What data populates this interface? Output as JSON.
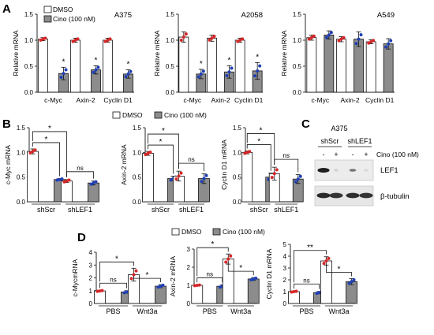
{
  "labels": {
    "A": "A",
    "B": "B",
    "C": "C",
    "D": "D"
  },
  "legend": {
    "dmso": "DMSO",
    "cino": "Cino (100 nM)"
  },
  "colors": {
    "dmso_fill": "#ffffff",
    "cino_fill": "#8c8c8c",
    "bar_stroke": "#111111",
    "dot_red": "#d62728",
    "dot_blue": "#1f3fb5"
  },
  "chart_data": [
    {
      "id": "A-A375",
      "type": "bar",
      "cell_line": "A375",
      "ylabel": "Relative mRNA",
      "ylim": [
        0,
        1.5
      ],
      "yticks": [
        "0.0",
        "0.5",
        "1.0",
        "1.5"
      ],
      "categories": [
        "c-Myc",
        "Axin-2",
        "Cyclin D1"
      ],
      "series": [
        {
          "name": "DMSO",
          "values": [
            1.02,
            1.0,
            1.0
          ],
          "err": [
            0.03,
            0.04,
            0.04
          ]
        },
        {
          "name": "Cino (100 nM)",
          "values": [
            0.36,
            0.43,
            0.35
          ],
          "err": [
            0.12,
            0.08,
            0.08
          ]
        }
      ],
      "annotations": [
        "*",
        "*",
        "*"
      ]
    },
    {
      "id": "A-A2058",
      "type": "bar",
      "cell_line": "A2058",
      "ylabel": "Relative mRNA",
      "ylim": [
        0,
        1.5
      ],
      "yticks": [
        "0.0",
        "0.5",
        "1.0",
        "1.5"
      ],
      "categories": [
        "c-Myc",
        "Axin-2",
        "Cyclin D1"
      ],
      "series": [
        {
          "name": "DMSO",
          "values": [
            1.06,
            1.04,
            1.0
          ],
          "err": [
            0.1,
            0.06,
            0.04
          ]
        },
        {
          "name": "Cino (100 nM)",
          "values": [
            0.35,
            0.39,
            0.41
          ],
          "err": [
            0.09,
            0.12,
            0.16
          ]
        }
      ],
      "annotations": [
        "*",
        "*",
        "*"
      ]
    },
    {
      "id": "A-A549",
      "type": "bar",
      "cell_line": "A549",
      "ylabel": "Relative mRNA",
      "ylim": [
        0,
        1.5
      ],
      "yticks": [
        "0.0",
        "0.5",
        "1.0",
        "1.5"
      ],
      "categories": [
        "c-Myc",
        "Axin-2",
        "Cyclin D1"
      ],
      "series": [
        {
          "name": "DMSO",
          "values": [
            1.05,
            1.02,
            0.97
          ],
          "err": [
            0.05,
            0.05,
            0.04
          ]
        },
        {
          "name": "Cino (100 nM)",
          "values": [
            1.1,
            1.02,
            0.93
          ],
          "err": [
            0.08,
            0.14,
            0.1
          ]
        }
      ],
      "annotations": []
    },
    {
      "id": "B-cMyc",
      "type": "bar",
      "ylabel": "c-Myc mRNA",
      "ylim": [
        0,
        1.5
      ],
      "yticks": [
        "0.0",
        "0.5",
        "1.0",
        "1.5"
      ],
      "categories": [
        "shScr",
        "shLEF1"
      ],
      "series": [
        {
          "name": "DMSO",
          "values": [
            1.02,
            0.42
          ],
          "err": [
            0.05,
            0.03
          ]
        },
        {
          "name": "Cino (100 nM)",
          "values": [
            0.45,
            0.38
          ],
          "err": [
            0.02,
            0.04
          ]
        }
      ],
      "annotations": [
        "*",
        "*",
        "ns"
      ]
    },
    {
      "id": "B-Axin2",
      "type": "bar",
      "ylabel": "Axin-2 mRNA",
      "ylim": [
        0,
        1.5
      ],
      "yticks": [
        "0.0",
        "0.5",
        "1.0",
        "1.5"
      ],
      "categories": [
        "shScr",
        "shLEF1"
      ],
      "series": [
        {
          "name": "DMSO",
          "values": [
            0.98,
            0.52
          ],
          "err": [
            0.04,
            0.1
          ]
        },
        {
          "name": "Cino (100 nM)",
          "values": [
            0.47,
            0.47
          ],
          "err": [
            0.05,
            0.1
          ]
        }
      ],
      "annotations": [
        "*",
        "*",
        "ns"
      ]
    },
    {
      "id": "B-CyclinD1",
      "type": "bar",
      "ylabel": "Cyclin D1 mRNA",
      "ylim": [
        0,
        1.5
      ],
      "yticks": [
        "0.0",
        "0.5",
        "1.0",
        "1.5"
      ],
      "categories": [
        "shScr",
        "shLEF1"
      ],
      "series": [
        {
          "name": "DMSO",
          "values": [
            1.0,
            0.57
          ],
          "err": [
            0.03,
            0.13
          ]
        },
        {
          "name": "Cino (100 nM)",
          "values": [
            0.5,
            0.46
          ],
          "err": [
            0.08,
            0.09
          ]
        }
      ],
      "annotations": [
        "*",
        "*",
        "ns"
      ]
    },
    {
      "id": "D-cMyc",
      "type": "bar",
      "ylabel": "c-MycmRNA",
      "ylim": [
        0,
        4
      ],
      "yticks": [
        "0",
        "1",
        "2",
        "3",
        "4"
      ],
      "categories": [
        "PBS",
        "Wnt3a"
      ],
      "series": [
        {
          "name": "DMSO",
          "values": [
            0.98,
            2.25
          ],
          "err": [
            0.05,
            0.5
          ]
        },
        {
          "name": "Cino (100 nM)",
          "values": [
            0.9,
            1.35
          ],
          "err": [
            0.1,
            0.12
          ]
        }
      ],
      "annotations": [
        "ns",
        "*",
        "*"
      ]
    },
    {
      "id": "D-Axin2",
      "type": "bar",
      "ylabel": "Axin-2 mRNA",
      "ylim": [
        0,
        3
      ],
      "yticks": [
        "0",
        "1",
        "2",
        "3"
      ],
      "categories": [
        "PBS",
        "Wnt3a"
      ],
      "series": [
        {
          "name": "DMSO",
          "values": [
            1.0,
            2.45
          ],
          "err": [
            0.03,
            0.28
          ]
        },
        {
          "name": "Cino (100 nM)",
          "values": [
            0.95,
            1.35
          ],
          "err": [
            0.08,
            0.08
          ]
        }
      ],
      "annotations": [
        "ns",
        "*",
        "*"
      ]
    },
    {
      "id": "D-CyclinD1",
      "type": "bar",
      "ylabel": "Cyclin D1 mRNA",
      "ylim": [
        0,
        5
      ],
      "yticks": [
        "0",
        "1",
        "2",
        "3",
        "4",
        "5"
      ],
      "categories": [
        "PBS",
        "Wnt3a"
      ],
      "series": [
        {
          "name": "DMSO",
          "values": [
            1.0,
            3.6
          ],
          "err": [
            0.05,
            0.35
          ]
        },
        {
          "name": "Cino (100 nM)",
          "values": [
            0.92,
            1.85
          ],
          "err": [
            0.1,
            0.25
          ]
        }
      ],
      "annotations": [
        "ns",
        "**",
        "*"
      ]
    }
  ],
  "western": {
    "cell_line": "A375",
    "groups": [
      "shScr",
      "shLEF1"
    ],
    "lanes": [
      "-",
      "+",
      "-",
      "+"
    ],
    "treatment": "Cino (100 nM)",
    "bands": [
      "LEF1",
      "β-tubulin"
    ],
    "lef1_intensity": [
      0.95,
      0.12,
      0.55,
      0.08
    ],
    "tubulin_intensity": [
      0.9,
      0.85,
      0.88,
      0.85
    ]
  }
}
